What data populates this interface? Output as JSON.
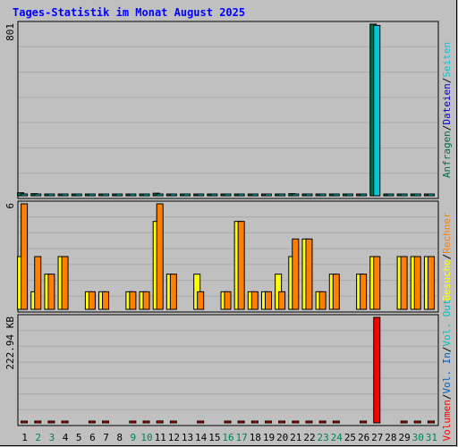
{
  "chart_data": {
    "type": "bar",
    "title": "Tages-Statistik im Monat August 2025",
    "days": [
      "1",
      "2",
      "3",
      "4",
      "5",
      "6",
      "7",
      "8",
      "9",
      "10",
      "11",
      "12",
      "13",
      "14",
      "15",
      "16",
      "17",
      "18",
      "19",
      "20",
      "21",
      "22",
      "23",
      "24",
      "25",
      "26",
      "27",
      "28",
      "29",
      "30",
      "31"
    ],
    "weekend_days": [
      "2",
      "3",
      "9",
      "10",
      "16",
      "17",
      "23",
      "24",
      "30",
      "31"
    ],
    "colors": {
      "background": "#c0c0c0",
      "grid": "#a8a8a8",
      "title": "#0000ff",
      "weekday": "#000000",
      "weekend": "#00805c",
      "anfragen": "#006c48",
      "dateien": "#0000d0",
      "seiten": "#00c8d8",
      "besuche": "#ffff00",
      "rechner": "#ff8000",
      "vol_in": "#0060c0",
      "vol_out": "#00c0c0",
      "volumen": "#ff0000"
    },
    "panels": [
      {
        "id": "hits",
        "ymax": "801",
        "ylim": [
          0,
          801
        ],
        "right_labels": [
          {
            "text": "Anfragen",
            "color": "#006c48"
          },
          {
            "text": "/",
            "color": "#000000"
          },
          {
            "text": "Dateien",
            "color": "#0000d0"
          },
          {
            "text": "/",
            "color": "#000000"
          },
          {
            "text": "Seiten",
            "color": "#00c8d8"
          }
        ],
        "series": [
          {
            "name": "Anfragen",
            "color": "#006c48",
            "values": [
              14,
              10,
              6,
              6,
              6,
              6,
              6,
              6,
              6,
              6,
              12,
              6,
              6,
              6,
              6,
              6,
              8,
              6,
              6,
              6,
              10,
              8,
              6,
              6,
              6,
              6,
              801,
              6,
              6,
              6,
              8
            ]
          },
          {
            "name": "Seiten",
            "color": "#00c8d8",
            "values": [
              8,
              6,
              4,
              4,
              4,
              4,
              4,
              4,
              4,
              4,
              8,
              4,
              4,
              4,
              4,
              4,
              6,
              4,
              4,
              4,
              6,
              6,
              4,
              4,
              4,
              4,
              795,
              4,
              4,
              4,
              6
            ]
          }
        ]
      },
      {
        "id": "visits",
        "ymax": "6",
        "ylim": [
          0,
          6
        ],
        "right_labels": [
          {
            "text": "Besuche",
            "color": "#ffff00"
          },
          {
            "text": "/",
            "color": "#000000"
          },
          {
            "text": "Rechner",
            "color": "#ff8000"
          }
        ],
        "series": [
          {
            "name": "Besuche",
            "color": "#ffff00",
            "values": [
              3,
              1,
              2,
              3,
              0,
              1,
              1,
              0,
              1,
              1,
              5,
              2,
              0,
              2,
              0,
              1,
              5,
              1,
              1,
              2,
              3,
              4,
              1,
              2,
              0,
              2,
              3,
              0,
              3,
              3,
              3
            ]
          },
          {
            "name": "Rechner",
            "color": "#ff8000",
            "values": [
              6,
              3,
              2,
              3,
              0,
              1,
              1,
              0,
              1,
              1,
              6,
              2,
              0,
              1,
              0,
              1,
              5,
              1,
              1,
              1,
              4,
              4,
              1,
              2,
              0,
              2,
              3,
              0,
              3,
              3,
              3
            ]
          }
        ]
      },
      {
        "id": "volume",
        "ymax": "222.94 KB",
        "ylim": [
          0,
          222.94
        ],
        "right_labels": [
          {
            "text": "Volumen",
            "color": "#ff0000"
          },
          {
            "text": "/",
            "color": "#000000"
          },
          {
            "text": "Vol. In",
            "color": "#0060c0"
          },
          {
            "text": "/",
            "color": "#000000"
          },
          {
            "text": "Vol. Out",
            "color": "#00c0c0"
          }
        ],
        "series": [
          {
            "name": "Volumen",
            "color": "#ff0000",
            "values": [
              3,
              3,
              3,
              3,
              0,
              3,
              3,
              0,
              3,
              3,
              4,
              3,
              0,
              3,
              0,
              3,
              3,
              3,
              3,
              3,
              3,
              3,
              3,
              3,
              0,
              3,
              222.94,
              0,
              3,
              3,
              3
            ]
          }
        ]
      }
    ]
  }
}
